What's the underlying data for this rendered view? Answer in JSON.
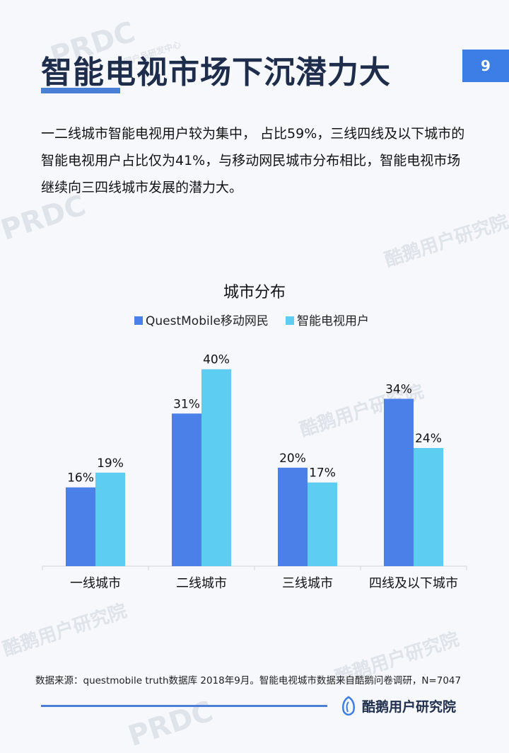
{
  "header": {
    "title": "智能电视市场下沉潜力大",
    "page_number": "9"
  },
  "body": {
    "paragraph": "一二线城市智能电视用户较为集中， 占比59%，三线四线及以下城市的智能电视用户占比仅为41%，与移动网民城市分布相比，智能电视市场继续向三四线城市发展的潜力大。"
  },
  "chart_data": {
    "type": "bar",
    "title": "城市分布",
    "categories": [
      "一线城市",
      "二线城市",
      "三线城市",
      "四线及以下城市"
    ],
    "series": [
      {
        "name": "QuestMobile移动网民",
        "values": [
          16,
          31,
          20,
          34
        ],
        "labels": [
          "16%",
          "31%",
          "20%",
          "34%"
        ],
        "color": "#4a80e8"
      },
      {
        "name": "智能电视用户",
        "values": [
          19,
          40,
          17,
          24
        ],
        "labels": [
          "19%",
          "40%",
          "17%",
          "24%"
        ],
        "color": "#5dcdf2"
      }
    ],
    "ylim": [
      0,
      46
    ],
    "legend": "top",
    "grid": false
  },
  "footer": {
    "source": "数据来源：questmobile truth数据库 2018年9月。智能电视城市数据来自酷鹅问卷调研，N=7047",
    "logo_text": "酷鹅用户研究院"
  },
  "watermarks": {
    "brand_text": "酷鹅用户研究院",
    "prdc": "PRDC",
    "prdc_sub": "腾讯网户品研发中心"
  }
}
